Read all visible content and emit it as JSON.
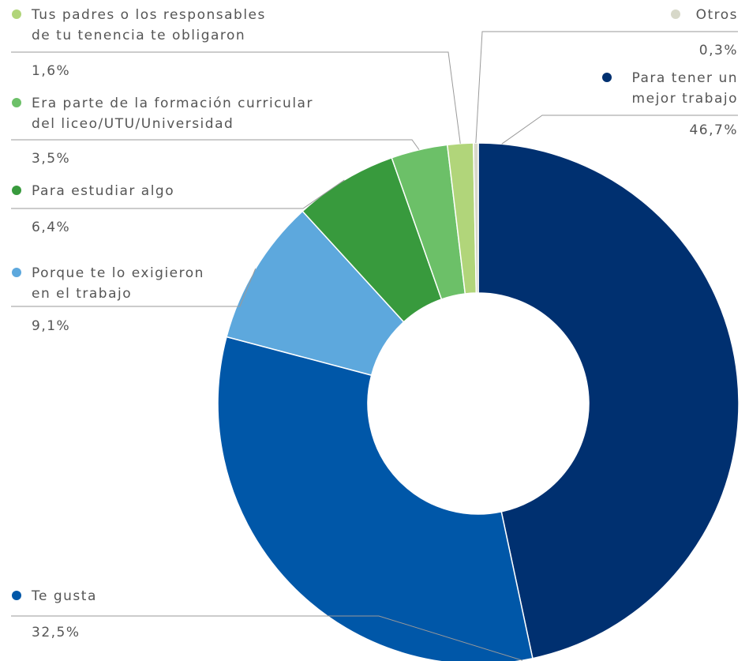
{
  "chart_data": {
    "type": "pie",
    "donut": true,
    "slices": [
      {
        "label": [
          "Para tener un",
          "mejor trabajo"
        ],
        "value": 46.7,
        "value_label": "46,7%",
        "color": "#003070"
      },
      {
        "label": [
          "Te gusta"
        ],
        "value": 32.5,
        "value_label": "32,5%",
        "color": "#0057A8"
      },
      {
        "label": [
          "Porque te lo exigieron",
          "en el trabajo"
        ],
        "value": 9.1,
        "value_label": "9,1%",
        "color": "#5DA8DD"
      },
      {
        "label": [
          "Para estudiar algo"
        ],
        "value": 6.4,
        "value_label": "6,4%",
        "color": "#389A3D"
      },
      {
        "label": [
          "Era parte de la formación curricular",
          "del liceo/UTU/Universidad"
        ],
        "value": 3.5,
        "value_label": "3,5%",
        "color": "#6CC068"
      },
      {
        "label": [
          "Tus padres o los responsables",
          "de tu tenencia te obligaron"
        ],
        "value": 1.6,
        "value_label": "1,6%",
        "color": "#B1D57A"
      },
      {
        "label": [
          "Otros"
        ],
        "value": 0.3,
        "value_label": "0,3%",
        "color": "#D7D8C9"
      }
    ]
  }
}
